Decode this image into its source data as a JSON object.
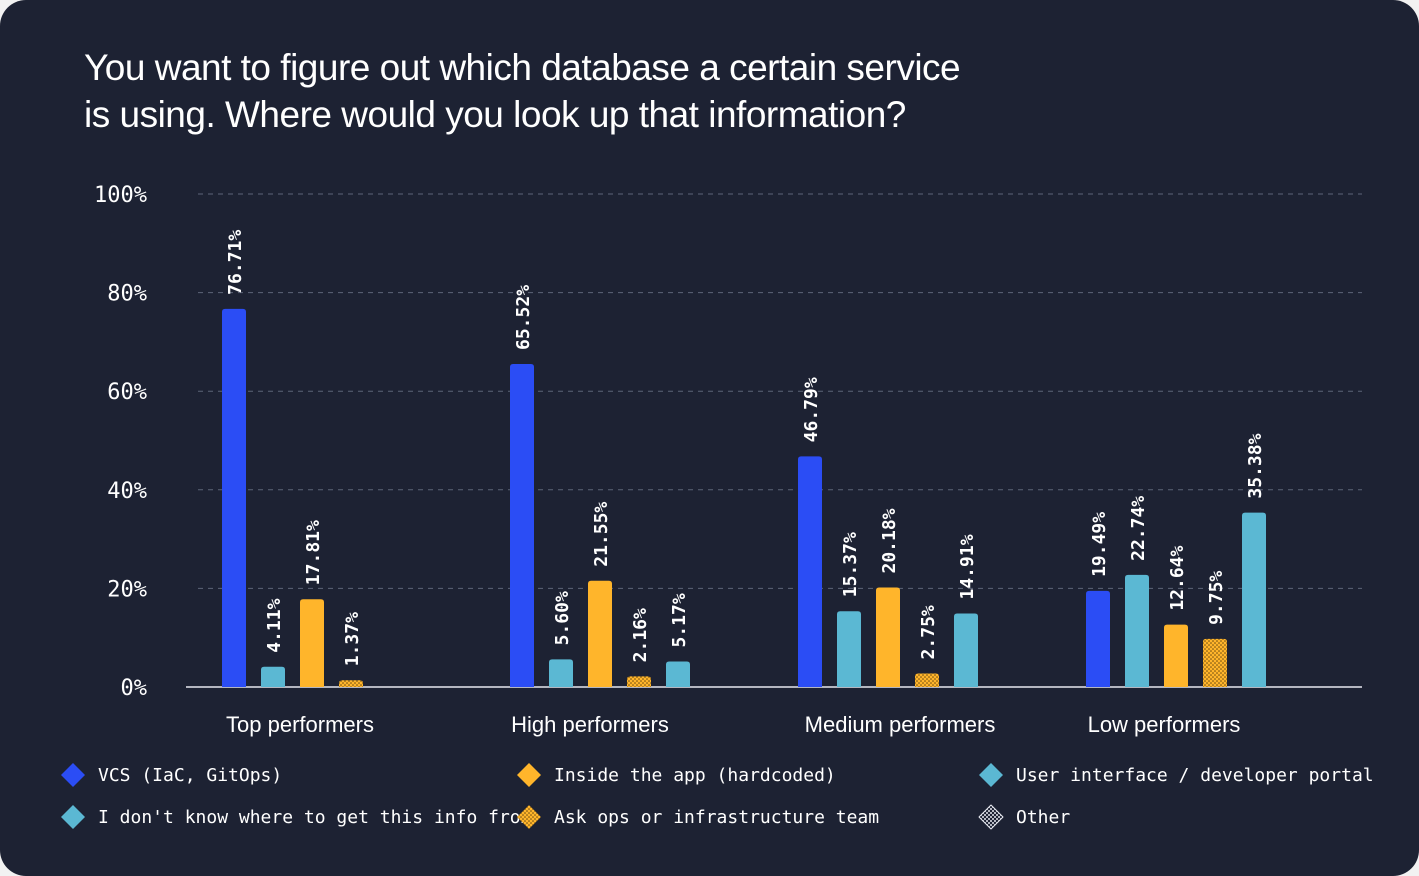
{
  "colors": {
    "background": "#1d2233",
    "vcs": "#2b4df5",
    "ui": "#5bb8d3",
    "app": "#ffb52b",
    "other_dots": "#e6e8f0"
  },
  "chart_data": {
    "type": "bar",
    "title_lines": [
      "You want to figure out which database a certain service",
      "is using. Where would you look up that information?"
    ],
    "xlabel": "",
    "ylabel": "",
    "ylim": [
      0,
      100
    ],
    "yticks": [
      "0%",
      "20%",
      "40%",
      "60%",
      "80%",
      "100%"
    ],
    "ytick_values": [
      0,
      20,
      40,
      60,
      80,
      100
    ],
    "grid": true,
    "legend_position": "bottom",
    "categories": [
      "Top performers",
      "High performers",
      "Medium performers",
      "Low performers"
    ],
    "series": [
      {
        "name": "VCS (IaC, GitOps)",
        "color": "#2b4df5",
        "pattern": "solid",
        "values": [
          76.71,
          65.52,
          46.79,
          19.49
        ],
        "labels": [
          "76.71%",
          "65.52%",
          "46.79%",
          "19.49%"
        ]
      },
      {
        "name": "I don't know where to get this info from",
        "color": "#5bb8d3",
        "pattern": "solid",
        "values": [
          4.11,
          5.6,
          15.37,
          22.74
        ],
        "labels": [
          "4.11%",
          "5.60%",
          "15.37%",
          "22.74%"
        ]
      },
      {
        "name": "Inside the app (hardcoded)",
        "color": "#ffb52b",
        "pattern": "solid",
        "values": [
          17.81,
          21.55,
          20.18,
          12.64
        ],
        "labels": [
          "17.81%",
          "21.55%",
          "20.18%",
          "12.64%"
        ]
      },
      {
        "name": "Ask ops or infrastructure team",
        "color": "#ffb52b",
        "pattern": "dots",
        "values": [
          1.37,
          2.16,
          2.75,
          9.75
        ],
        "labels": [
          "1.37%",
          "2.16%",
          "2.75%",
          "9.75%"
        ]
      },
      {
        "name": "User interface / developer portal",
        "color": "#5bb8d3",
        "pattern": "solid",
        "values": [
          null,
          5.17,
          14.91,
          35.38
        ],
        "labels": [
          "",
          "5.17%",
          "14.91%",
          "35.38%"
        ]
      },
      {
        "name": "Other",
        "color": "#e6e8f0",
        "pattern": "dots",
        "values": [
          null,
          null,
          null,
          null
        ],
        "labels": [
          "",
          "",
          "",
          ""
        ]
      }
    ]
  },
  "legend": [
    {
      "label": "VCS (IaC, GitOps)",
      "color": "#2b4df5",
      "pattern": "solid"
    },
    {
      "label": "Inside the app (hardcoded)",
      "color": "#ffb52b",
      "pattern": "solid"
    },
    {
      "label": "User interface / developer portal",
      "color": "#5bb8d3",
      "pattern": "solid"
    },
    {
      "label": "I don't know where to get this info from",
      "color": "#5bb8d3",
      "pattern": "solid"
    },
    {
      "label": "Ask ops or infrastructure team",
      "color": "#ffb52b",
      "pattern": "dots"
    },
    {
      "label": "Other",
      "color": "#e6e8f0",
      "pattern": "dots"
    }
  ]
}
